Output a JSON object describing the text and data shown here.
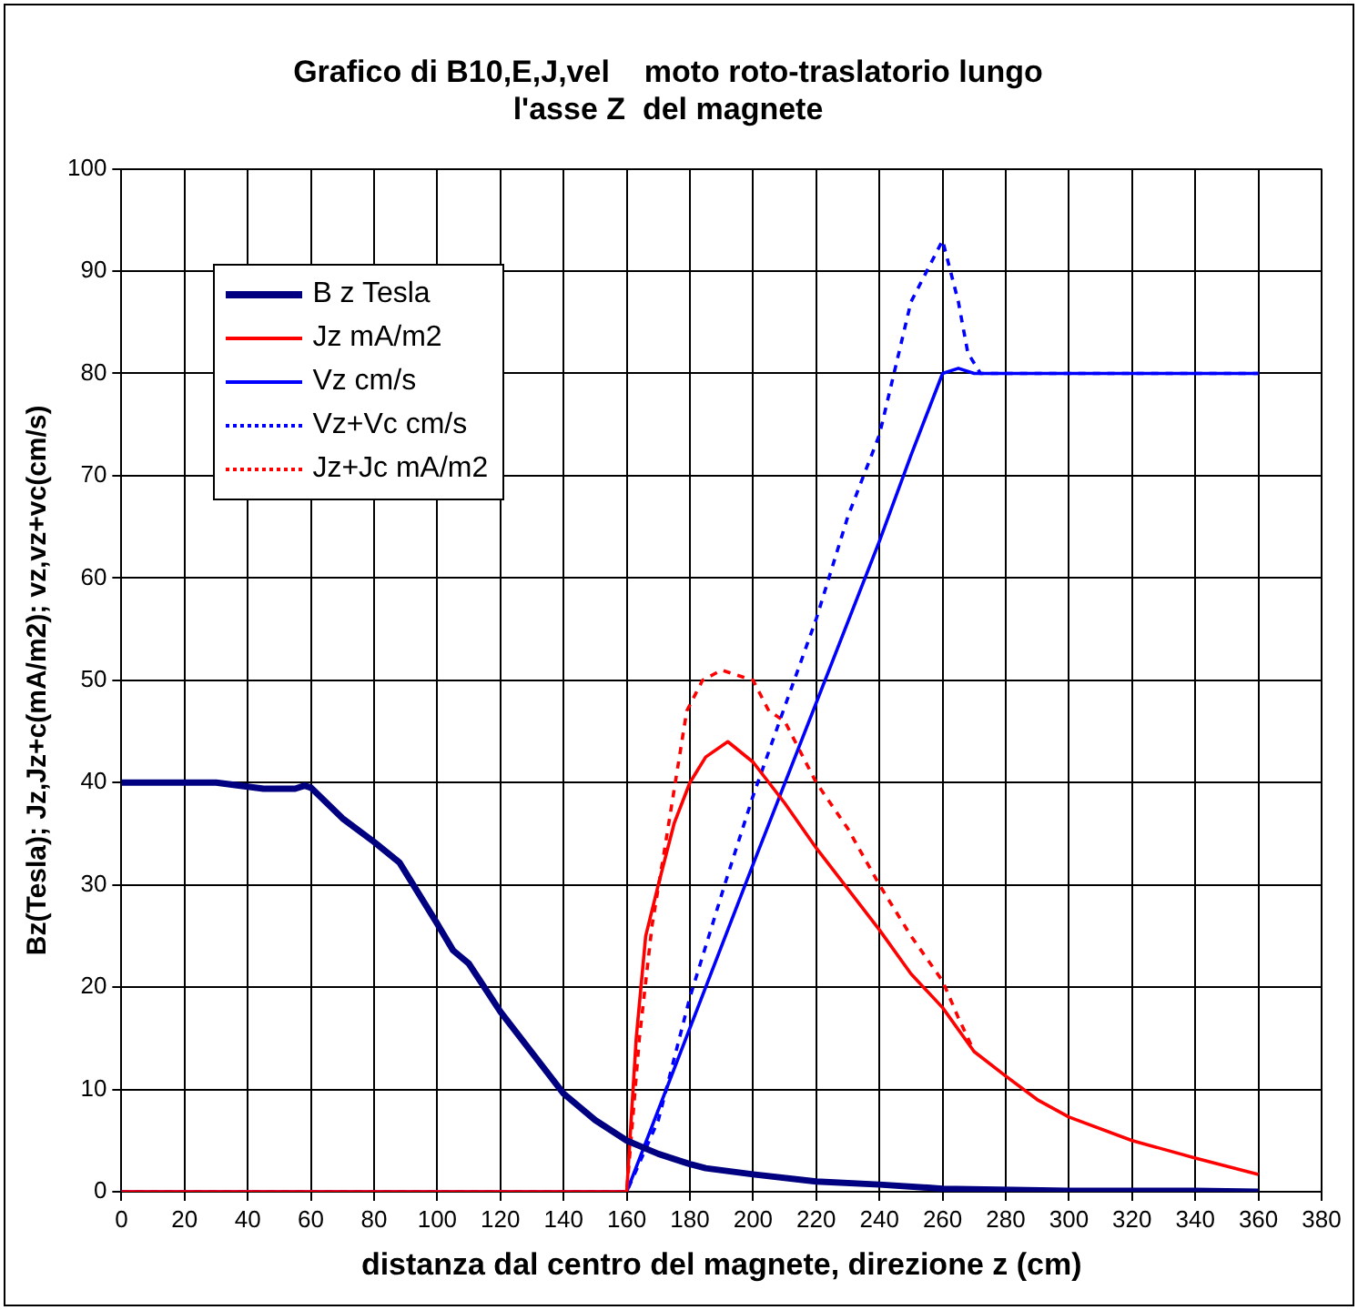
{
  "chart_data": {
    "type": "line",
    "title": "Grafico di B10,E,J,vel    moto roto-traslatorio lungo\nl'asse Z  del magnete",
    "xlabel": "distanza dal centro del magnete, direzione z (cm)",
    "ylabel": "Bz(Tesla); Jz,Jz+c(mA/m2); vz,vz+vc(cm/s)",
    "xlim": [
      0,
      380
    ],
    "xticks": [
      0,
      20,
      40,
      60,
      80,
      100,
      120,
      140,
      160,
      180,
      200,
      220,
      240,
      260,
      280,
      300,
      320,
      340,
      360,
      380
    ],
    "ylim": [
      0,
      100
    ],
    "yticks": [
      0,
      10,
      20,
      30,
      40,
      50,
      60,
      70,
      80,
      90,
      100
    ],
    "grid": true,
    "legend": "top left",
    "marker": "none",
    "series": [
      {
        "name": "B z Tesla",
        "color": "#000080",
        "line_style": "solid",
        "x": [
          0,
          30,
          40,
          45,
          55,
          58,
          60,
          70,
          80,
          88,
          100,
          105,
          110,
          120,
          130,
          140,
          150,
          160,
          170,
          180,
          185,
          200,
          220,
          240,
          260,
          300,
          340,
          360
        ],
        "values": [
          40,
          40,
          39.6,
          39.4,
          39.4,
          39.7,
          39.5,
          36.5,
          34.2,
          32.2,
          26.2,
          23.6,
          22.3,
          17.6,
          13.6,
          9.6,
          7,
          5,
          3.7,
          2.7,
          2.3,
          1.7,
          1,
          0.7,
          0.3,
          0.1,
          0.1,
          0
        ]
      },
      {
        "name": "Jz mA/m2",
        "color": "#ff0000",
        "line_style": "solid",
        "x": [
          0,
          160,
          163,
          166,
          170,
          175,
          180,
          185,
          192,
          200,
          210,
          220,
          230,
          240,
          250,
          260,
          270,
          280,
          290,
          300,
          320,
          340,
          360
        ],
        "values": [
          0,
          0,
          15,
          25,
          30,
          36,
          40,
          42.5,
          44,
          42,
          38,
          33.6,
          29.6,
          25.6,
          21.3,
          18,
          13.7,
          11.3,
          9,
          7.3,
          5,
          3.3,
          1.7
        ]
      },
      {
        "name": "Vz cm/s",
        "color": "#0000ff",
        "line_style": "solid",
        "x": [
          0,
          160,
          200,
          240,
          250,
          260,
          265,
          270,
          360
        ],
        "values": [
          0,
          0,
          32,
          63.6,
          72,
          80,
          80.5,
          80,
          80
        ]
      },
      {
        "name": "Vz+Vc cm/s",
        "color": "#0000ff",
        "line_style": "dotted",
        "x": [
          0,
          160,
          170,
          180,
          191,
          200,
          210,
          220,
          230,
          240,
          250,
          260,
          265,
          268,
          272,
          360
        ],
        "values": [
          0,
          0,
          7,
          19,
          30,
          38.7,
          47.4,
          56,
          66,
          74,
          87,
          93,
          87,
          82,
          80,
          80
        ]
      },
      {
        "name": "Jz+Jc mA/m2",
        "color": "#ff0000",
        "line_style": "dotted",
        "x": [
          0,
          160,
          164,
          168,
          172,
          179,
          184,
          190,
          200,
          205,
          210,
          220,
          230,
          240,
          250,
          260,
          265,
          270
        ],
        "values": [
          0,
          0,
          15,
          26,
          33.5,
          47,
          50,
          51,
          50,
          47,
          46,
          40,
          35.5,
          30,
          25,
          20.6,
          17,
          13.7
        ]
      }
    ]
  }
}
